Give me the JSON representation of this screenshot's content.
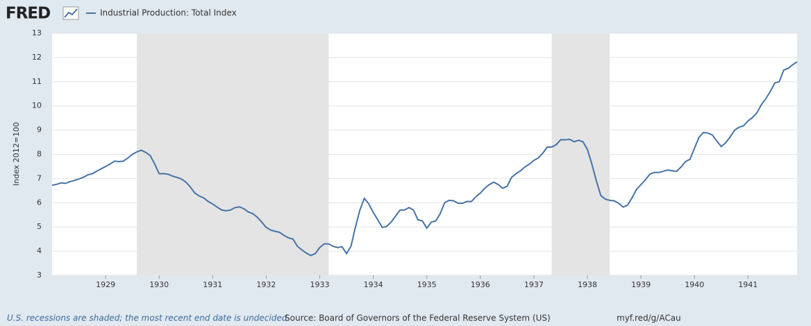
{
  "chart_data": {
    "type": "line",
    "logo": "FRED",
    "y_label": "Index 2012=100",
    "note": "U.S. recessions are shaded; the most recent end date is undecided.",
    "source": "Source: Board of Governors of the Federal Reserve System (US)",
    "url": "myf.red/g/ACau",
    "xlim": [
      1928,
      1941.917
    ],
    "xticks": [
      1929,
      1930,
      1931,
      1932,
      1933,
      1934,
      1935,
      1936,
      1937,
      1938,
      1939,
      1940,
      1941
    ],
    "ylim": [
      3,
      13
    ],
    "yticks": [
      3,
      4,
      5,
      6,
      7,
      8,
      9,
      10,
      11,
      12,
      13
    ],
    "grid": true,
    "recessions": [
      [
        1929.583,
        1933.167
      ],
      [
        1937.333,
        1938.417
      ]
    ],
    "recession_color": "#e4e4e4",
    "x": [
      1928,
      1928.083,
      1928.167,
      1928.25,
      1928.333,
      1928.417,
      1928.5,
      1928.583,
      1928.667,
      1928.75,
      1928.833,
      1928.917,
      1929,
      1929.083,
      1929.167,
      1929.25,
      1929.333,
      1929.417,
      1929.5,
      1929.583,
      1929.667,
      1929.75,
      1929.833,
      1929.917,
      1930,
      1930.083,
      1930.167,
      1930.25,
      1930.333,
      1930.417,
      1930.5,
      1930.583,
      1930.667,
      1930.75,
      1930.833,
      1930.917,
      1931,
      1931.083,
      1931.167,
      1931.25,
      1931.333,
      1931.417,
      1931.5,
      1931.583,
      1931.667,
      1931.75,
      1931.833,
      1931.917,
      1932,
      1932.083,
      1932.167,
      1932.25,
      1932.333,
      1932.417,
      1932.5,
      1932.583,
      1932.667,
      1932.75,
      1932.833,
      1932.917,
      1933,
      1933.083,
      1933.167,
      1933.25,
      1933.333,
      1933.417,
      1933.5,
      1933.583,
      1933.667,
      1933.75,
      1933.833,
      1933.917,
      1934,
      1934.083,
      1934.167,
      1934.25,
      1934.333,
      1934.417,
      1934.5,
      1934.583,
      1934.667,
      1934.75,
      1934.833,
      1934.917,
      1935,
      1935.083,
      1935.167,
      1935.25,
      1935.333,
      1935.417,
      1935.5,
      1935.583,
      1935.667,
      1935.75,
      1935.833,
      1935.917,
      1936,
      1936.083,
      1936.167,
      1936.25,
      1936.333,
      1936.417,
      1936.5,
      1936.583,
      1936.667,
      1936.75,
      1936.833,
      1936.917,
      1937,
      1937.083,
      1937.167,
      1937.25,
      1937.333,
      1937.417,
      1937.5,
      1937.583,
      1937.667,
      1937.75,
      1937.833,
      1937.917,
      1938,
      1938.083,
      1938.167,
      1938.25,
      1938.333,
      1938.417,
      1938.5,
      1938.583,
      1938.667,
      1938.75,
      1938.833,
      1938.917,
      1939,
      1939.083,
      1939.167,
      1939.25,
      1939.333,
      1939.417,
      1939.5,
      1939.583,
      1939.667,
      1939.75,
      1939.833,
      1939.917,
      1940,
      1940.083,
      1940.167,
      1940.25,
      1940.333,
      1940.417,
      1940.5,
      1940.583,
      1940.667,
      1940.75,
      1940.833,
      1940.917,
      1941,
      1941.083,
      1941.167,
      1941.25,
      1941.333,
      1941.417,
      1941.5,
      1941.583,
      1941.667,
      1941.75,
      1941.833,
      1941.917
    ],
    "series": [
      {
        "name": "Industrial Production: Total Index",
        "color": "#4572a7",
        "values": [
          6.72,
          6.76,
          6.82,
          6.8,
          6.87,
          6.92,
          6.98,
          7.05,
          7.15,
          7.2,
          7.3,
          7.4,
          7.5,
          7.6,
          7.72,
          7.7,
          7.72,
          7.85,
          8.0,
          8.1,
          8.17,
          8.08,
          7.95,
          7.6,
          7.2,
          7.2,
          7.18,
          7.1,
          7.05,
          6.98,
          6.85,
          6.65,
          6.4,
          6.28,
          6.2,
          6.05,
          5.95,
          5.82,
          5.7,
          5.67,
          5.7,
          5.8,
          5.83,
          5.75,
          5.62,
          5.55,
          5.4,
          5.2,
          4.98,
          4.87,
          4.82,
          4.78,
          4.65,
          4.55,
          4.5,
          4.2,
          4.05,
          3.92,
          3.82,
          3.9,
          4.15,
          4.3,
          4.3,
          4.2,
          4.15,
          4.18,
          3.9,
          4.2,
          5.0,
          5.7,
          6.18,
          5.95,
          5.6,
          5.3,
          4.98,
          5.02,
          5.2,
          5.45,
          5.7,
          5.7,
          5.8,
          5.7,
          5.3,
          5.25,
          4.95,
          5.2,
          5.25,
          5.55,
          6.0,
          6.1,
          6.08,
          5.98,
          5.98,
          6.05,
          6.05,
          6.25,
          6.4,
          6.6,
          6.75,
          6.85,
          6.75,
          6.6,
          6.68,
          7.05,
          7.2,
          7.32,
          7.48,
          7.6,
          7.75,
          7.85,
          8.05,
          8.3,
          8.3,
          8.4,
          8.6,
          8.6,
          8.62,
          8.52,
          8.58,
          8.52,
          8.2,
          7.6,
          6.9,
          6.3,
          6.15,
          6.1,
          6.08,
          5.98,
          5.82,
          5.9,
          6.2,
          6.55,
          6.75,
          6.95,
          7.18,
          7.25,
          7.25,
          7.3,
          7.35,
          7.32,
          7.3,
          7.48,
          7.7,
          7.8,
          8.25,
          8.7,
          8.9,
          8.88,
          8.8,
          8.55,
          8.32,
          8.48,
          8.72,
          9.0,
          9.12,
          9.18,
          9.38,
          9.52,
          9.72,
          10.05,
          10.3,
          10.6,
          10.95,
          11.0,
          11.48,
          11.55,
          11.7,
          11.82
        ]
      }
    ]
  }
}
